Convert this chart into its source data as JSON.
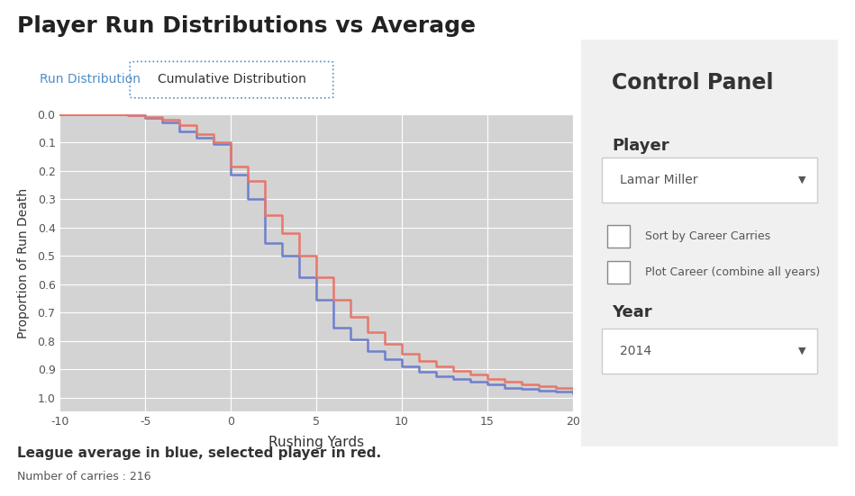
{
  "title": "Player Run Distributions vs Average",
  "tab1": "Run Distribution",
  "tab2": "Cumulative Distribution",
  "xlabel": "Rushing Yards",
  "ylabel": "Proportion of Run Death",
  "footnote1": "League average in blue, selected player in red.",
  "footnote2": "Number of carries : 216",
  "xlim": [
    -10,
    20
  ],
  "ylim": [
    0.0,
    1.05
  ],
  "yticks": [
    0.0,
    0.1,
    0.2,
    0.3,
    0.4,
    0.5,
    0.6,
    0.7,
    0.8,
    0.9,
    1.0
  ],
  "xticks": [
    -10,
    -5,
    0,
    5,
    10,
    15,
    20
  ],
  "bg_color": "#e8e8e8",
  "plot_bg_color": "#d3d3d3",
  "blue_color": "#6f7fcc",
  "red_color": "#e8776a",
  "control_panel_bg": "#f0f0f0",
  "control_panel_border": "#d0d0d0",
  "blue_x": [
    -10,
    -9,
    -8,
    -7,
    -6,
    -5,
    -4,
    -3,
    -2,
    -1,
    0,
    1,
    2,
    3,
    4,
    5,
    6,
    7,
    8,
    9,
    10,
    11,
    12,
    13,
    14,
    15,
    16,
    17,
    18,
    19,
    20
  ],
  "blue_y": [
    0.0,
    0.0,
    0.0,
    0.0,
    0.005,
    0.015,
    0.03,
    0.06,
    0.085,
    0.105,
    0.215,
    0.3,
    0.455,
    0.5,
    0.575,
    0.655,
    0.755,
    0.795,
    0.835,
    0.865,
    0.89,
    0.91,
    0.925,
    0.935,
    0.945,
    0.955,
    0.965,
    0.97,
    0.975,
    0.98,
    0.985
  ],
  "red_x": [
    -10,
    -9,
    -8,
    -7,
    -6,
    -5,
    -4,
    -3,
    -2,
    -1,
    0,
    1,
    2,
    3,
    4,
    5,
    6,
    7,
    8,
    9,
    10,
    11,
    12,
    13,
    14,
    15,
    16,
    17,
    18,
    19,
    20
  ],
  "red_y": [
    0.0,
    0.0,
    0.0,
    0.0,
    0.005,
    0.01,
    0.02,
    0.04,
    0.07,
    0.1,
    0.185,
    0.235,
    0.355,
    0.42,
    0.5,
    0.575,
    0.655,
    0.715,
    0.77,
    0.81,
    0.845,
    0.87,
    0.89,
    0.905,
    0.92,
    0.935,
    0.945,
    0.955,
    0.96,
    0.965,
    0.97
  ],
  "control_title": "Control Panel",
  "control_player_label": "Player",
  "control_player_value": "Lamar Miller",
  "control_check1": "Sort by Career Carries",
  "control_check2": "Plot Career (combine all years)",
  "control_year_label": "Year",
  "control_year_value": "2014"
}
